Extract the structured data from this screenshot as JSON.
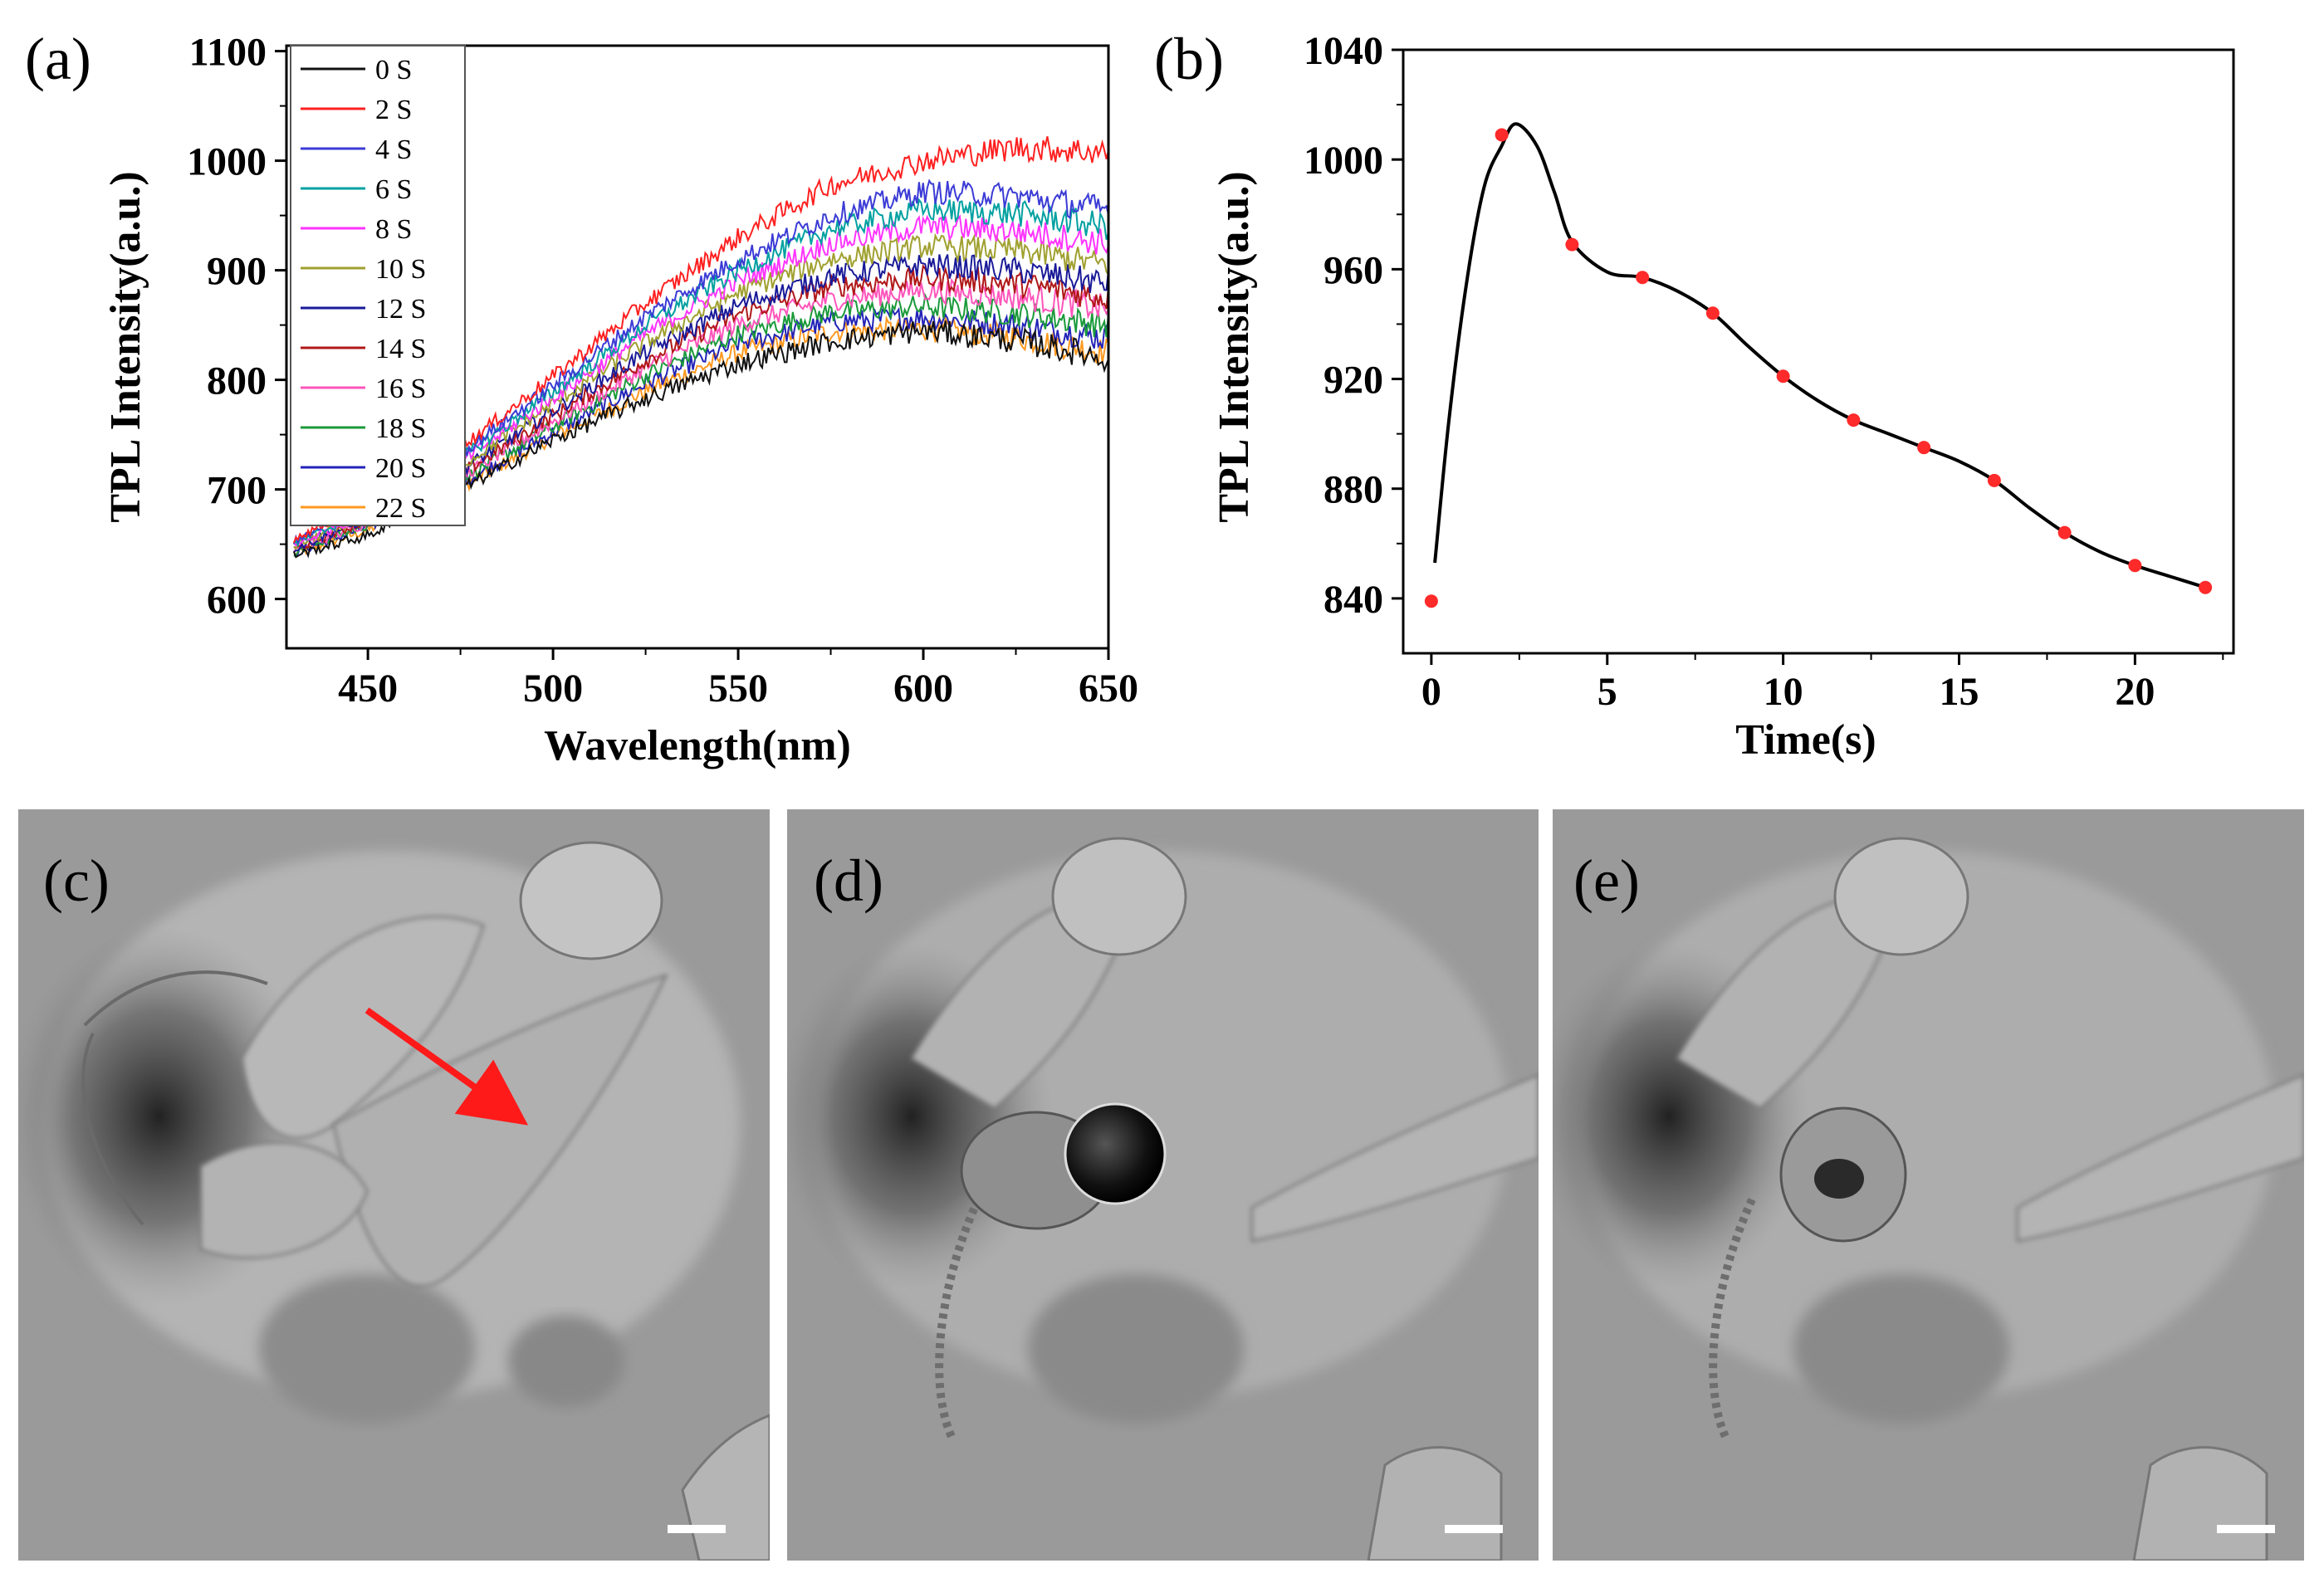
{
  "panels": {
    "a": "(a)",
    "b": "(b)",
    "c": "(c)",
    "d": "(d)",
    "e": "(e)"
  },
  "colors": {
    "red_point": "#ff2a2a",
    "arrow": "#ff1a1a",
    "axis": "#000000"
  },
  "chart_data": [
    {
      "id": "a",
      "type": "line",
      "title": "",
      "xlabel": "Wavelength(nm)",
      "ylabel": "TPL Intensity(a.u.)",
      "xlim": [
        428,
        650
      ],
      "ylim": [
        555,
        1105
      ],
      "xticks": [
        450,
        500,
        550,
        600,
        650
      ],
      "yticks": [
        600,
        700,
        800,
        900,
        1000,
        1100
      ],
      "legend_position": "top-left",
      "note": "Each series is a noisy spectrum; values are the smooth baseline at the listed wavelengths.",
      "x": [
        430,
        450,
        475,
        500,
        525,
        550,
        575,
        600,
        625,
        650
      ],
      "series": [
        {
          "name": "0 S",
          "color": "#111111",
          "values": [
            640,
            658,
            700,
            745,
            783,
            815,
            835,
            845,
            836,
            820
          ]
        },
        {
          "name": "2 S",
          "color": "#ff2020",
          "values": [
            655,
            688,
            738,
            803,
            870,
            930,
            978,
            1000,
            1012,
            1008
          ]
        },
        {
          "name": "4 S",
          "color": "#3b3bd6",
          "values": [
            652,
            684,
            732,
            795,
            858,
            910,
            950,
            972,
            968,
            955
          ]
        },
        {
          "name": "6 S",
          "color": "#00a0a0",
          "values": [
            650,
            681,
            728,
            789,
            850,
            900,
            938,
            955,
            952,
            940
          ]
        },
        {
          "name": "8 S",
          "color": "#ff33ff",
          "values": [
            649,
            679,
            725,
            784,
            842,
            890,
            925,
            940,
            936,
            925
          ]
        },
        {
          "name": "10 S",
          "color": "#a0a030",
          "values": [
            648,
            677,
            721,
            778,
            834,
            880,
            910,
            922,
            918,
            905
          ]
        },
        {
          "name": "12 S",
          "color": "#1a1a99",
          "values": [
            646,
            674,
            717,
            772,
            825,
            868,
            895,
            905,
            900,
            888
          ]
        },
        {
          "name": "14 S",
          "color": "#b01818",
          "values": [
            645,
            672,
            714,
            767,
            818,
            860,
            885,
            893,
            888,
            875
          ]
        },
        {
          "name": "16 S",
          "color": "#ff55bb",
          "values": [
            644,
            670,
            711,
            762,
            811,
            851,
            873,
            882,
            876,
            865
          ]
        },
        {
          "name": "18 S",
          "color": "#1a9a3a",
          "values": [
            643,
            668,
            708,
            757,
            804,
            842,
            862,
            867,
            861,
            850
          ]
        },
        {
          "name": "20 S",
          "color": "#2323b8",
          "values": [
            642,
            666,
            705,
            752,
            797,
            833,
            853,
            857,
            850,
            838
          ]
        },
        {
          "name": "22 S",
          "color": "#ff9920",
          "values": [
            641,
            663,
            702,
            748,
            790,
            825,
            844,
            847,
            839,
            825
          ]
        }
      ]
    },
    {
      "id": "b",
      "type": "scatter",
      "title": "",
      "xlabel": "Time(s)",
      "ylabel": "TPL Intensity(a.u.)",
      "xlim": [
        -0.8,
        22.8
      ],
      "ylim": [
        820,
        1040
      ],
      "xticks": [
        0,
        5,
        10,
        15,
        20
      ],
      "yticks": [
        840,
        880,
        920,
        960,
        1000,
        1040
      ],
      "x": [
        0,
        2,
        4,
        6,
        8,
        10,
        12,
        14,
        16,
        18,
        20,
        22
      ],
      "values": [
        839,
        1009,
        969,
        957,
        944,
        921,
        905,
        895,
        883,
        864,
        852,
        844
      ],
      "fit_curve": {
        "x": [
          0.1,
          0.5,
          1,
          1.5,
          2,
          2.4,
          3,
          3.5,
          4,
          5,
          6,
          7,
          8,
          9,
          10,
          11,
          12,
          13,
          14,
          15,
          16,
          17,
          18,
          19,
          20,
          21,
          22
        ],
        "values": [
          853,
          905,
          955,
          990,
          1005,
          1013,
          1005,
          988,
          970,
          959,
          957,
          952,
          944,
          932,
          921,
          912,
          905,
          900,
          895,
          890,
          883,
          873,
          864,
          857,
          852,
          848,
          844
        ]
      }
    }
  ],
  "images": [
    {
      "id": "c",
      "description_label": "(c)"
    },
    {
      "id": "d",
      "description_label": "(d)"
    },
    {
      "id": "e",
      "description_label": "(e)"
    }
  ]
}
